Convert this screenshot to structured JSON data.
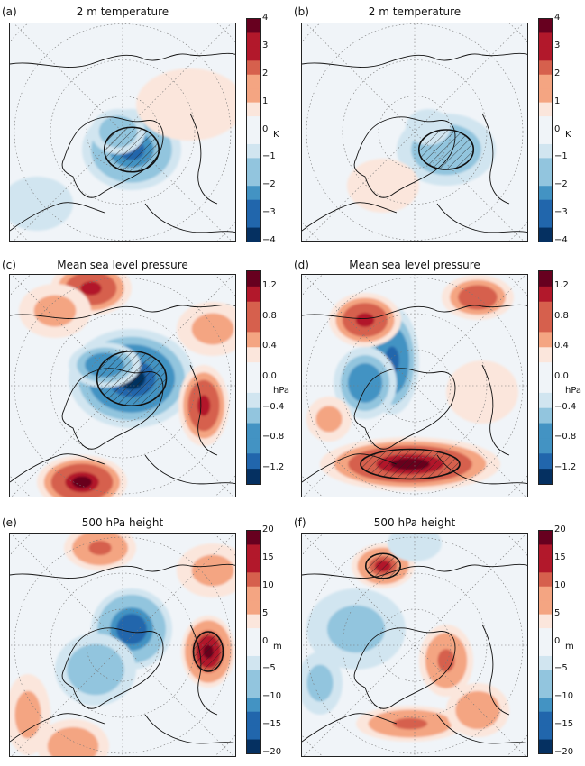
{
  "colors": {
    "palette": [
      "#053061",
      "#2166ac",
      "#4393c3",
      "#92c5de",
      "#d1e5f0",
      "#f0f4f8",
      "#fbe6dc",
      "#f4a582",
      "#d6604d",
      "#b2182b",
      "#67001f"
    ]
  },
  "chart_data": [
    {
      "type": "map",
      "panel": "(a)",
      "title": "2 m temperature",
      "unit": "K",
      "colorbar_ticks": [
        "4",
        "3",
        "2",
        "1",
        "0",
        "−1",
        "−2",
        "−3",
        "−4"
      ],
      "clim": [
        -4,
        4
      ]
    },
    {
      "type": "map",
      "panel": "(b)",
      "title": "2 m temperature",
      "unit": "K",
      "colorbar_ticks": [
        "4",
        "3",
        "2",
        "1",
        "0",
        "−1",
        "−2",
        "−3",
        "−4"
      ],
      "clim": [
        -4,
        4
      ]
    },
    {
      "type": "map",
      "panel": "(c)",
      "title": "Mean sea level pressure",
      "unit": "hPa",
      "colorbar_ticks": [
        "1.2",
        "0.8",
        "0.4",
        "0.0",
        "−0.4",
        "−0.8",
        "−1.2"
      ],
      "clim": [
        -1.4,
        1.4
      ]
    },
    {
      "type": "map",
      "panel": "(d)",
      "title": "Mean sea level pressure",
      "unit": "hPa",
      "colorbar_ticks": [
        "1.2",
        "0.8",
        "0.4",
        "0.0",
        "−0.4",
        "−0.8",
        "−1.2"
      ],
      "clim": [
        -1.4,
        1.4
      ]
    },
    {
      "type": "map",
      "panel": "(e)",
      "title": "500 hPa height",
      "unit": "m",
      "colorbar_ticks": [
        "20",
        "15",
        "10",
        "5",
        "0",
        "−5",
        "−10",
        "−15",
        "−20"
      ],
      "clim": [
        -20,
        20
      ]
    },
    {
      "type": "map",
      "panel": "(f)",
      "title": "500 hPa height",
      "unit": "m",
      "colorbar_ticks": [
        "20",
        "15",
        "10",
        "5",
        "0",
        "−5",
        "−10",
        "−15",
        "−20"
      ],
      "clim": [
        -20,
        20
      ]
    }
  ]
}
